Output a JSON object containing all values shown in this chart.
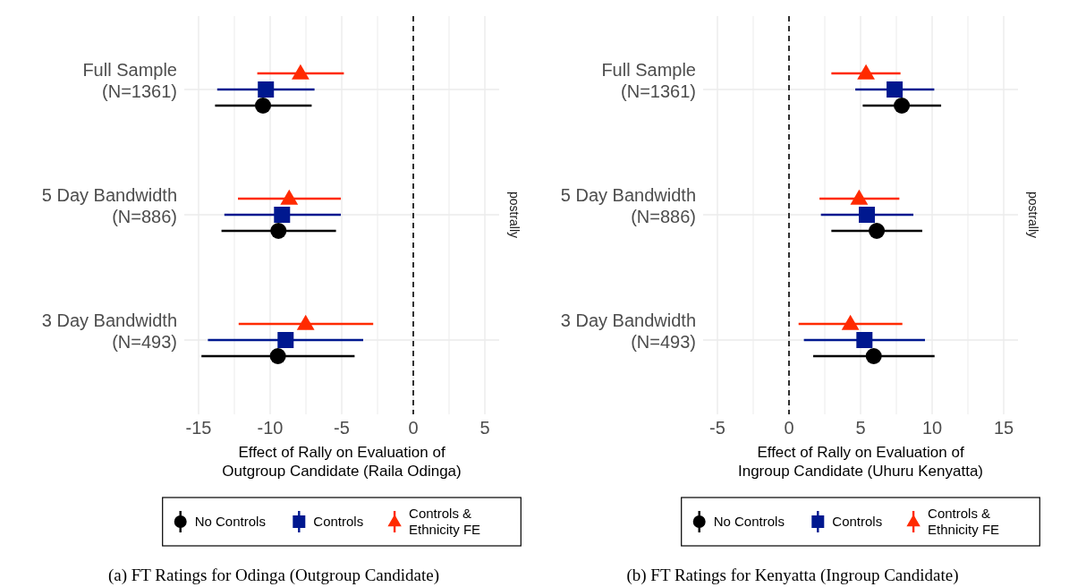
{
  "chart_data": [
    {
      "type": "scatter",
      "orientation": "horizontal",
      "title": "(a)  FT Ratings for Odinga (Outgroup Candidate)",
      "xlabel": "Effect of Rally on Evaluation of Outgroup Candidate (Raila Odinga)",
      "annotations": [
        "postrally"
      ],
      "categories": [
        "Full Sample (N=1361)",
        "5 Day Bandwidth (N=886)",
        "3 Day Bandwidth (N=493)"
      ],
      "xlim": [
        -16,
        6
      ],
      "xticks": [
        -15,
        {
          "value": -12.5,
          "label": null
        },
        -10,
        {
          "value": -7.5,
          "label": null
        },
        -5,
        {
          "value": -2.5,
          "label": null
        },
        0,
        {
          "value": 2.5,
          "label": null
        },
        5
      ],
      "grid": true,
      "legend": "bottom",
      "ref_lines": [
        {
          "axis": "x",
          "value": 0,
          "line_style": "dashed",
          "color": "#000000"
        }
      ],
      "series": [
        {
          "name": "No Controls",
          "color": "#000000",
          "marker": "circle",
          "values": [
            -10.5,
            -9.42,
            -9.46
          ],
          "errors": [
            [
              -13.85,
              -7.1
            ],
            [
              -13.4,
              -5.4
            ],
            [
              -14.8,
              -4.1
            ]
          ]
        },
        {
          "name": "Controls",
          "color": "#00188f",
          "marker": "square",
          "values": [
            -10.3,
            -9.17,
            -8.92
          ],
          "errors": [
            [
              -13.7,
              -6.9
            ],
            [
              -13.2,
              -5.06
            ],
            [
              -14.35,
              -3.5
            ]
          ]
        },
        {
          "name": "Controls & Ethnicity FE",
          "color": "#ff2a00",
          "marker": "triangle",
          "values": [
            -7.88,
            -8.67,
            -7.52
          ],
          "errors": [
            [
              -10.9,
              -4.85
            ],
            [
              -12.25,
              -5.06
            ],
            [
              -12.2,
              -2.8
            ]
          ]
        }
      ]
    },
    {
      "type": "scatter",
      "orientation": "horizontal",
      "title": "(b)  FT Ratings for Kenyatta (Ingroup Candidate)",
      "xlabel": "Effect of Rally on Evaluation of Ingroup Candidate (Uhuru Kenyatta)",
      "annotations": [
        "postrally"
      ],
      "categories": [
        "Full Sample (N=1361)",
        "5 Day Bandwidth (N=886)",
        "3 Day Bandwidth (N=493)"
      ],
      "xlim": [
        -6,
        16
      ],
      "xticks": [
        -5,
        {
          "value": -2.5,
          "label": null
        },
        0,
        {
          "value": 2.5,
          "label": null
        },
        5,
        {
          "value": 7.5,
          "label": null
        },
        10,
        {
          "value": 12.5,
          "label": null
        },
        15
      ],
      "grid": true,
      "legend": "bottom",
      "ref_lines": [
        {
          "axis": "x",
          "value": 0,
          "line_style": "dashed",
          "color": "#000000"
        }
      ],
      "series": [
        {
          "name": "No Controls",
          "color": "#000000",
          "marker": "circle",
          "values": [
            7.88,
            6.13,
            5.92
          ],
          "errors": [
            [
              5.15,
              10.63
            ],
            [
              2.96,
              9.31
            ],
            [
              1.69,
              10.17
            ]
          ]
        },
        {
          "name": "Controls",
          "color": "#00188f",
          "marker": "square",
          "values": [
            7.38,
            5.44,
            5.27
          ],
          "errors": [
            [
              4.63,
              10.15
            ],
            [
              2.23,
              8.69
            ],
            [
              1.04,
              9.5
            ]
          ]
        },
        {
          "name": "Controls & Ethnicity FE",
          "color": "#ff2a00",
          "marker": "triangle",
          "values": [
            5.38,
            4.9,
            4.29
          ],
          "errors": [
            [
              2.96,
              7.79
            ],
            [
              2.13,
              7.71
            ],
            [
              0.67,
              7.92
            ]
          ]
        }
      ]
    }
  ]
}
